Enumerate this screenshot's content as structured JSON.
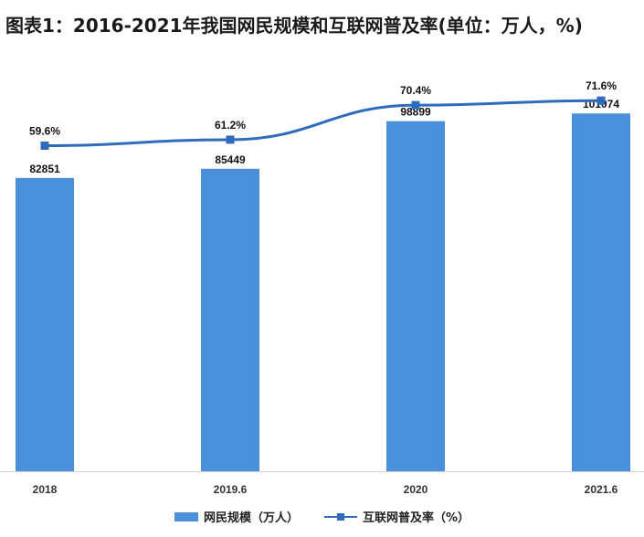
{
  "title": "图表1：2016-2021年我国网民规模和互联网普及率(单位：万人，%)",
  "colors": {
    "bar": "#4a8fd9",
    "line": "#2f6bbd"
  },
  "chart_data": {
    "type": "bar",
    "categories": [
      "2018",
      "2019.6",
      "2020",
      "2021.6"
    ],
    "series": [
      {
        "name": "网民规模（万人）",
        "type": "bar",
        "values": [
          82851,
          85449,
          98899,
          101074
        ],
        "labels": [
          "82851",
          "85449",
          "98899",
          "101074"
        ]
      },
      {
        "name": "互联网普及率（%）",
        "type": "line",
        "values": [
          59.6,
          61.2,
          70.4,
          71.6
        ],
        "labels": [
          "59.6%",
          "61.2%",
          "70.4%",
          "71.6%"
        ]
      }
    ],
    "legend_position": "bottom",
    "grid": false
  }
}
